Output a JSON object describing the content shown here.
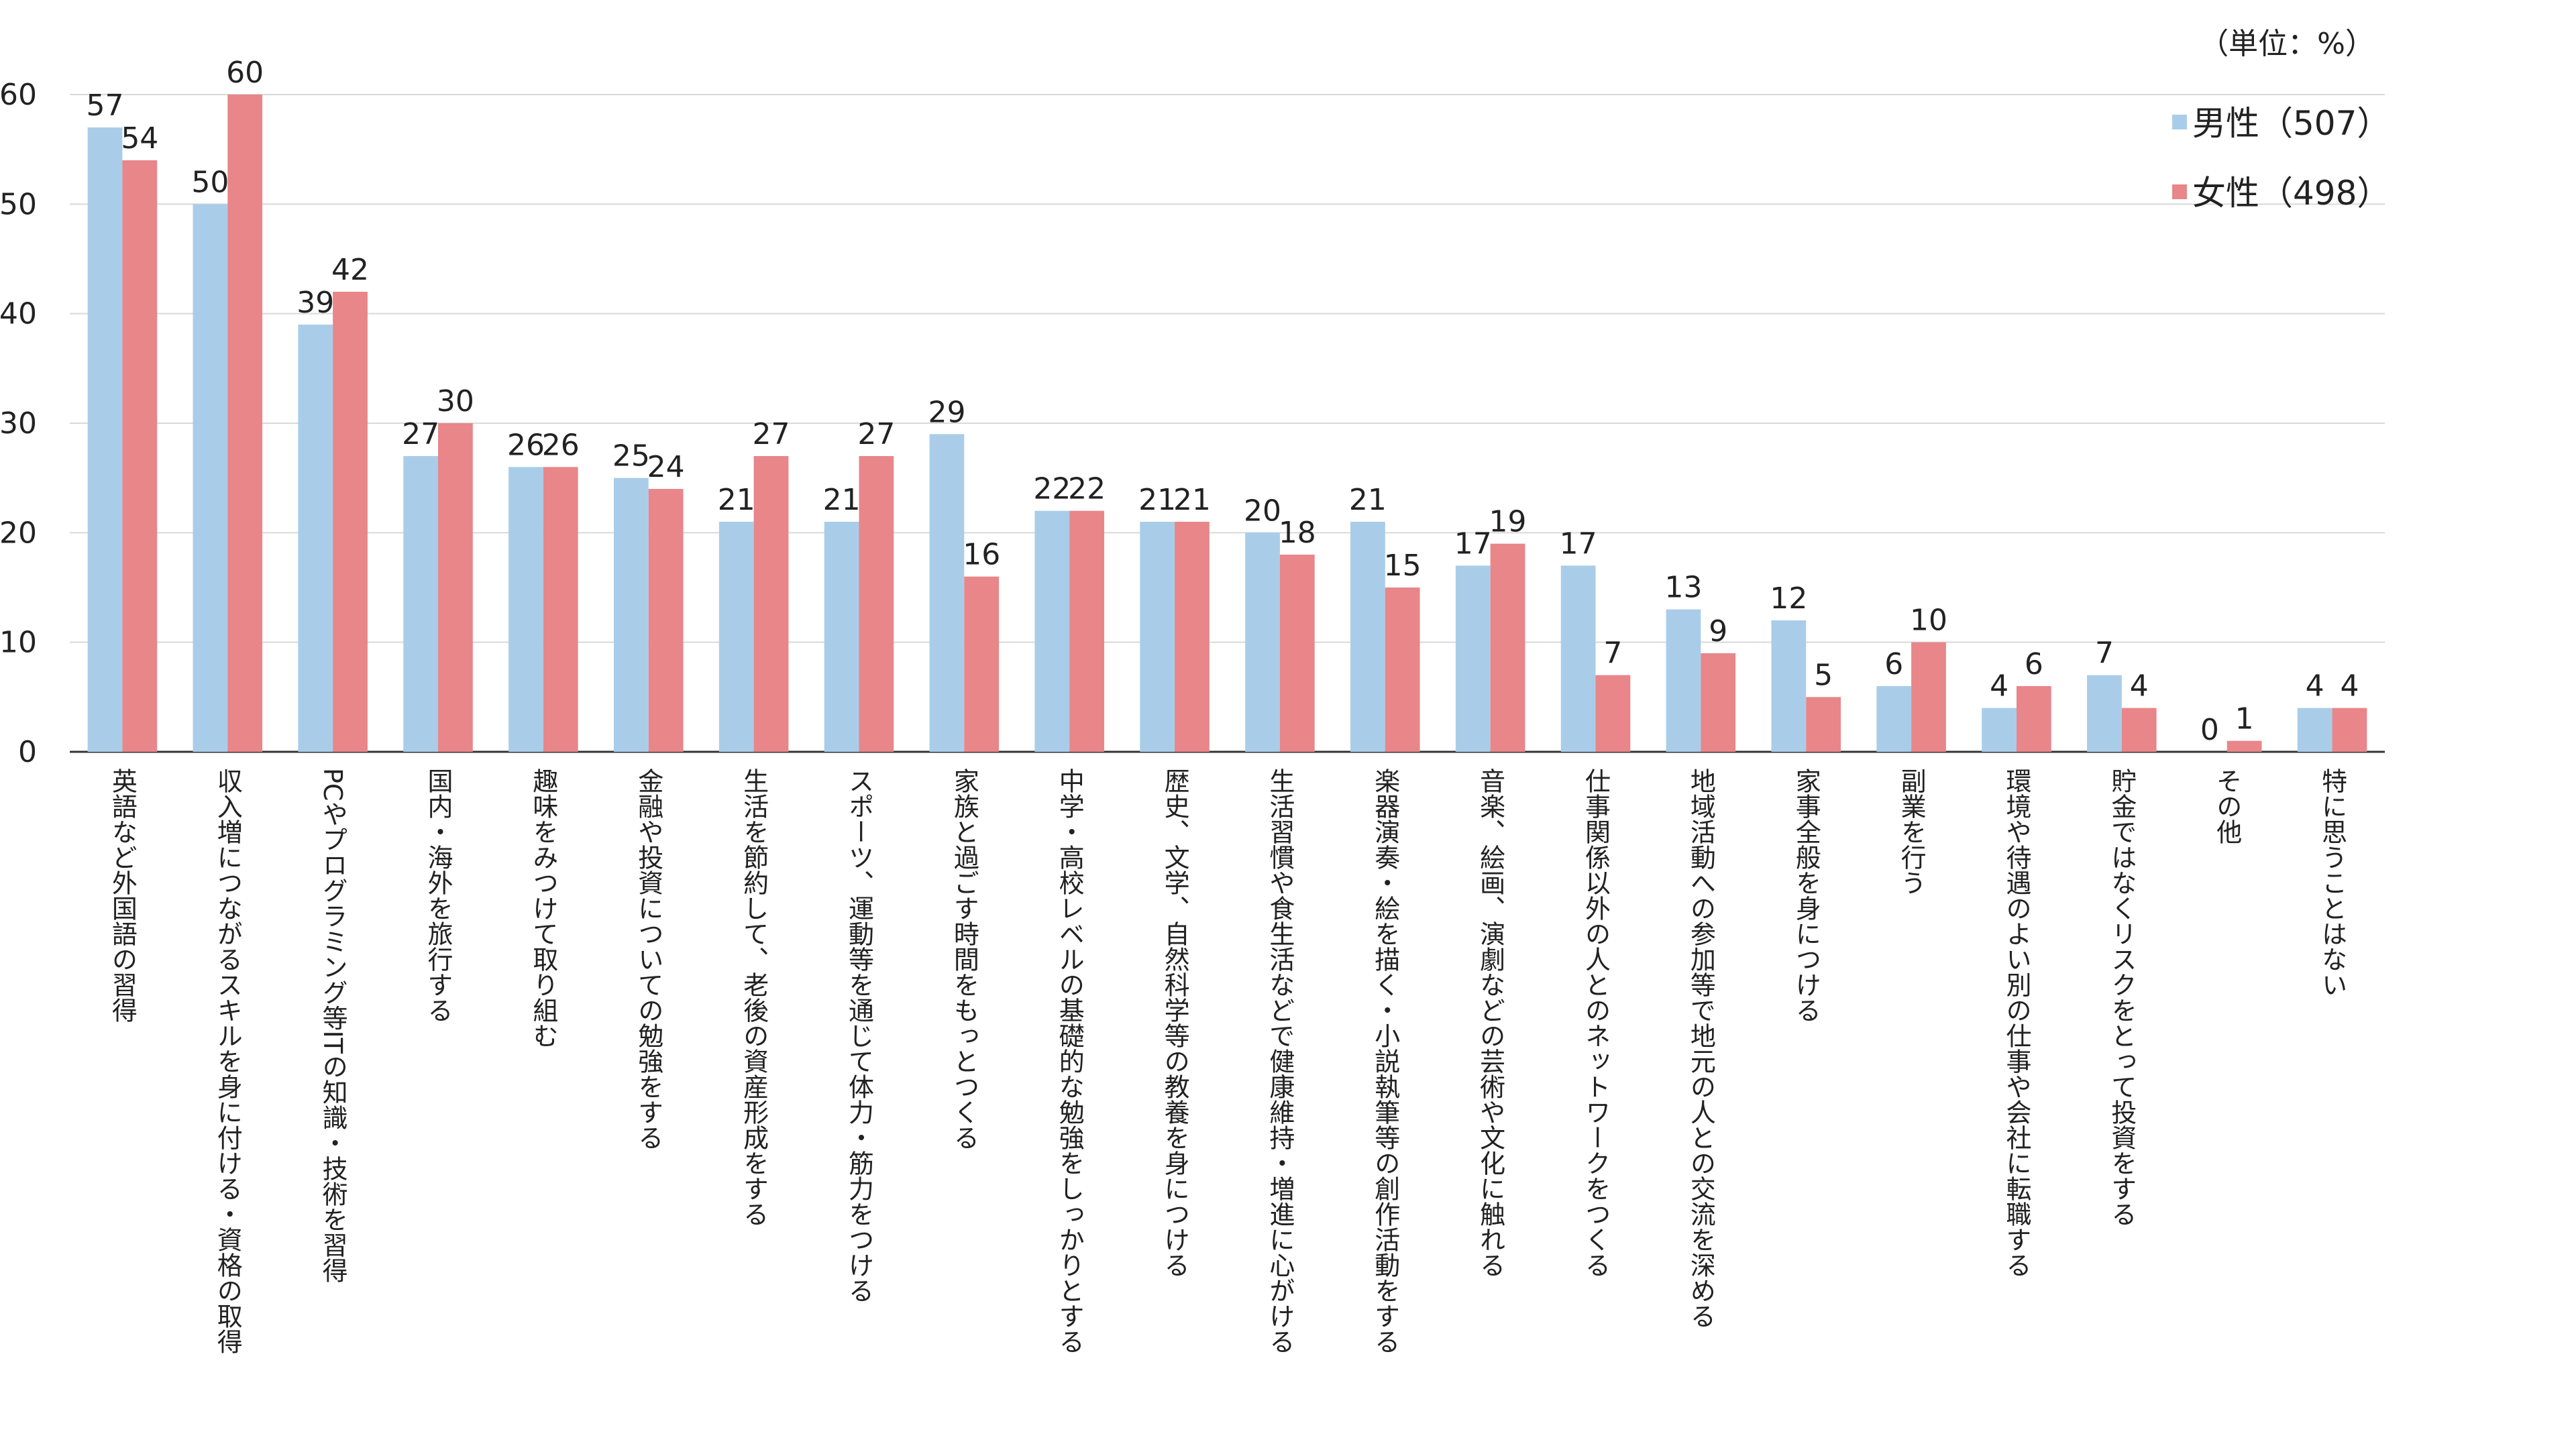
{
  "chart_data": {
    "type": "bar",
    "unit_note": "（単位：%）",
    "categories": [
      "英語など外国語の習得",
      "収入増につながるスキルを身に付ける・資格の取得",
      "PCやプログラミング等ITの知識・技術を習得",
      "国内・海外を旅行する",
      "趣味をみつけて取り組む",
      "金融や投資についての勉強をする",
      "生活を節約して、老後の資産形成をする",
      "スポーツ、運動等を通じて体力・筋力をつける",
      "家族と過ごす時間をもっとつくる",
      "中学・高校レベルの基礎的な勉強をしっかりとする",
      "歴史、文学、自然科学等の教養を身につける",
      "生活習慣や食生活などで健康維持・増進に心がける",
      "楽器演奏・絵を描く・小説執筆等の創作活動をする",
      "音楽、絵画、演劇などの芸術や文化に触れる",
      "仕事関係以外の人とのネットワークをつくる",
      "地域活動への参加等で地元の人との交流を深める",
      "家事全般を身につける",
      "副業を行う",
      "環境や待遇のよい別の仕事や会社に転職する",
      "貯金ではなくリスクをとって投資をする",
      "その他",
      "特に思うことはない"
    ],
    "series": [
      {
        "name": "男性（507）",
        "color": "#a9cde9",
        "values": [
          57,
          50,
          39,
          27,
          26,
          25,
          21,
          21,
          29,
          22,
          21,
          20,
          21,
          17,
          17,
          13,
          12,
          6,
          4,
          7,
          0,
          4
        ]
      },
      {
        "name": "女性（498）",
        "color": "#e8868a",
        "values": [
          54,
          60,
          42,
          30,
          26,
          24,
          27,
          27,
          16,
          22,
          21,
          18,
          15,
          19,
          7,
          9,
          5,
          10,
          6,
          4,
          1,
          4
        ]
      }
    ],
    "ylim": [
      0,
      60
    ],
    "yticks": [
      0,
      10,
      20,
      30,
      40,
      50,
      60
    ],
    "grid": true,
    "legend": "top-right"
  }
}
